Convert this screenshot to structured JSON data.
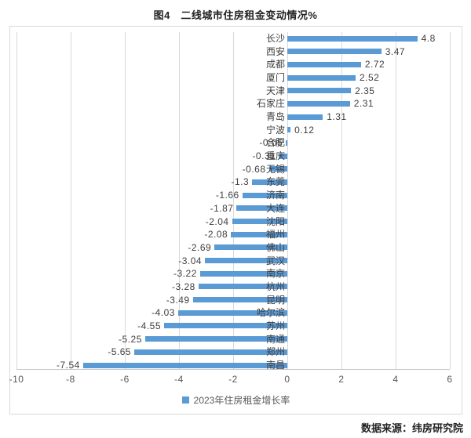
{
  "page": {
    "title": "图4　二线城市住房租金变动情况%",
    "source": "数据来源：纬房研究院"
  },
  "chart_data": {
    "type": "bar",
    "orientation": "horizontal",
    "title": "图4　二线城市住房租金变动情况%",
    "legend": "2023年住房租金增长率",
    "legend_position": "bottom",
    "categories": [
      "长沙",
      "西安",
      "成都",
      "厦门",
      "天津",
      "石家庄",
      "青岛",
      "宁波",
      "合肥",
      "重庆",
      "无锡",
      "东莞",
      "济南",
      "大连",
      "沈阳",
      "福州",
      "佛山",
      "武汉",
      "南京",
      "杭州",
      "昆明",
      "哈尔滨",
      "苏州",
      "南通",
      "郑州",
      "南昌"
    ],
    "values": [
      4.8,
      3.47,
      2.72,
      2.52,
      2.35,
      2.31,
      1.31,
      0.12,
      -0.05,
      -0.31,
      -0.68,
      -1.3,
      -1.66,
      -1.87,
      -2.04,
      -2.08,
      -2.69,
      -3.04,
      -3.22,
      -3.28,
      -3.49,
      -4.03,
      -4.55,
      -5.25,
      -5.65,
      -7.54
    ],
    "value_labels": [
      "4.8",
      "3.47",
      "2.72",
      "2.52",
      "2.35",
      "2.31",
      "1.31",
      "0.12",
      "-0.05",
      "-0.31",
      "-0.68",
      "-1.3",
      "-1.66",
      "-1.87",
      "-2.04",
      "-2.08",
      "-2.69",
      "-3.04",
      "-3.22",
      "-3.28",
      "-3.49",
      "-4.03",
      "-4.55",
      "-5.25",
      "-5.65",
      "-7.54"
    ],
    "xlabel": "",
    "ylabel": "",
    "xlim": [
      -10,
      6
    ],
    "xticks": [
      -10,
      -8,
      -6,
      -4,
      -2,
      0,
      2,
      4,
      6
    ],
    "grid": true,
    "bar_color": "#5B9BD5",
    "source": "数据来源：纬房研究院"
  }
}
